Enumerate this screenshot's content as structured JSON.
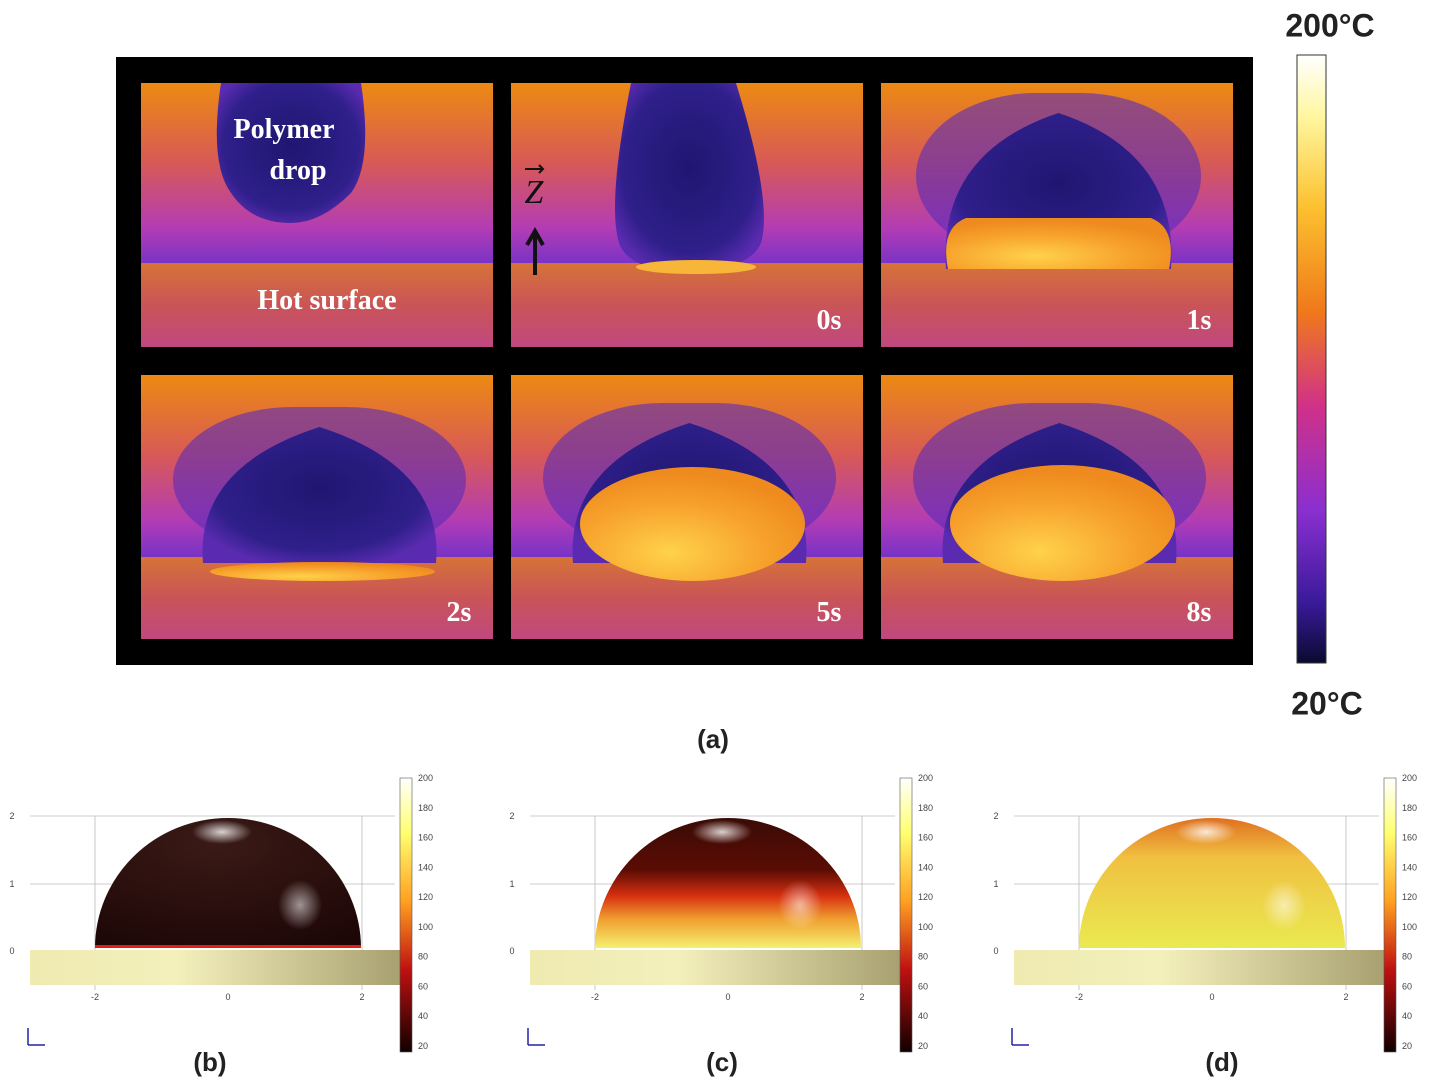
{
  "panel_a": {
    "label": "(a)",
    "colorbar_max": "200°C",
    "colorbar_min": "20°C",
    "drop_label": [
      "Polymer",
      "drop"
    ],
    "surface_label": "Hot surface",
    "axis_label": "Z",
    "frame_times": [
      "0s",
      "1s",
      "2s",
      "5s",
      "8s"
    ]
  },
  "simulations": {
    "labels": [
      "(b)",
      "(c)",
      "(d)"
    ],
    "colorbar_ticks": [
      200,
      180,
      160,
      140,
      120,
      100,
      80,
      60,
      40,
      20
    ],
    "y_ticks": [
      2,
      1,
      0
    ],
    "x_ticks": [
      -2,
      0,
      2
    ]
  }
}
